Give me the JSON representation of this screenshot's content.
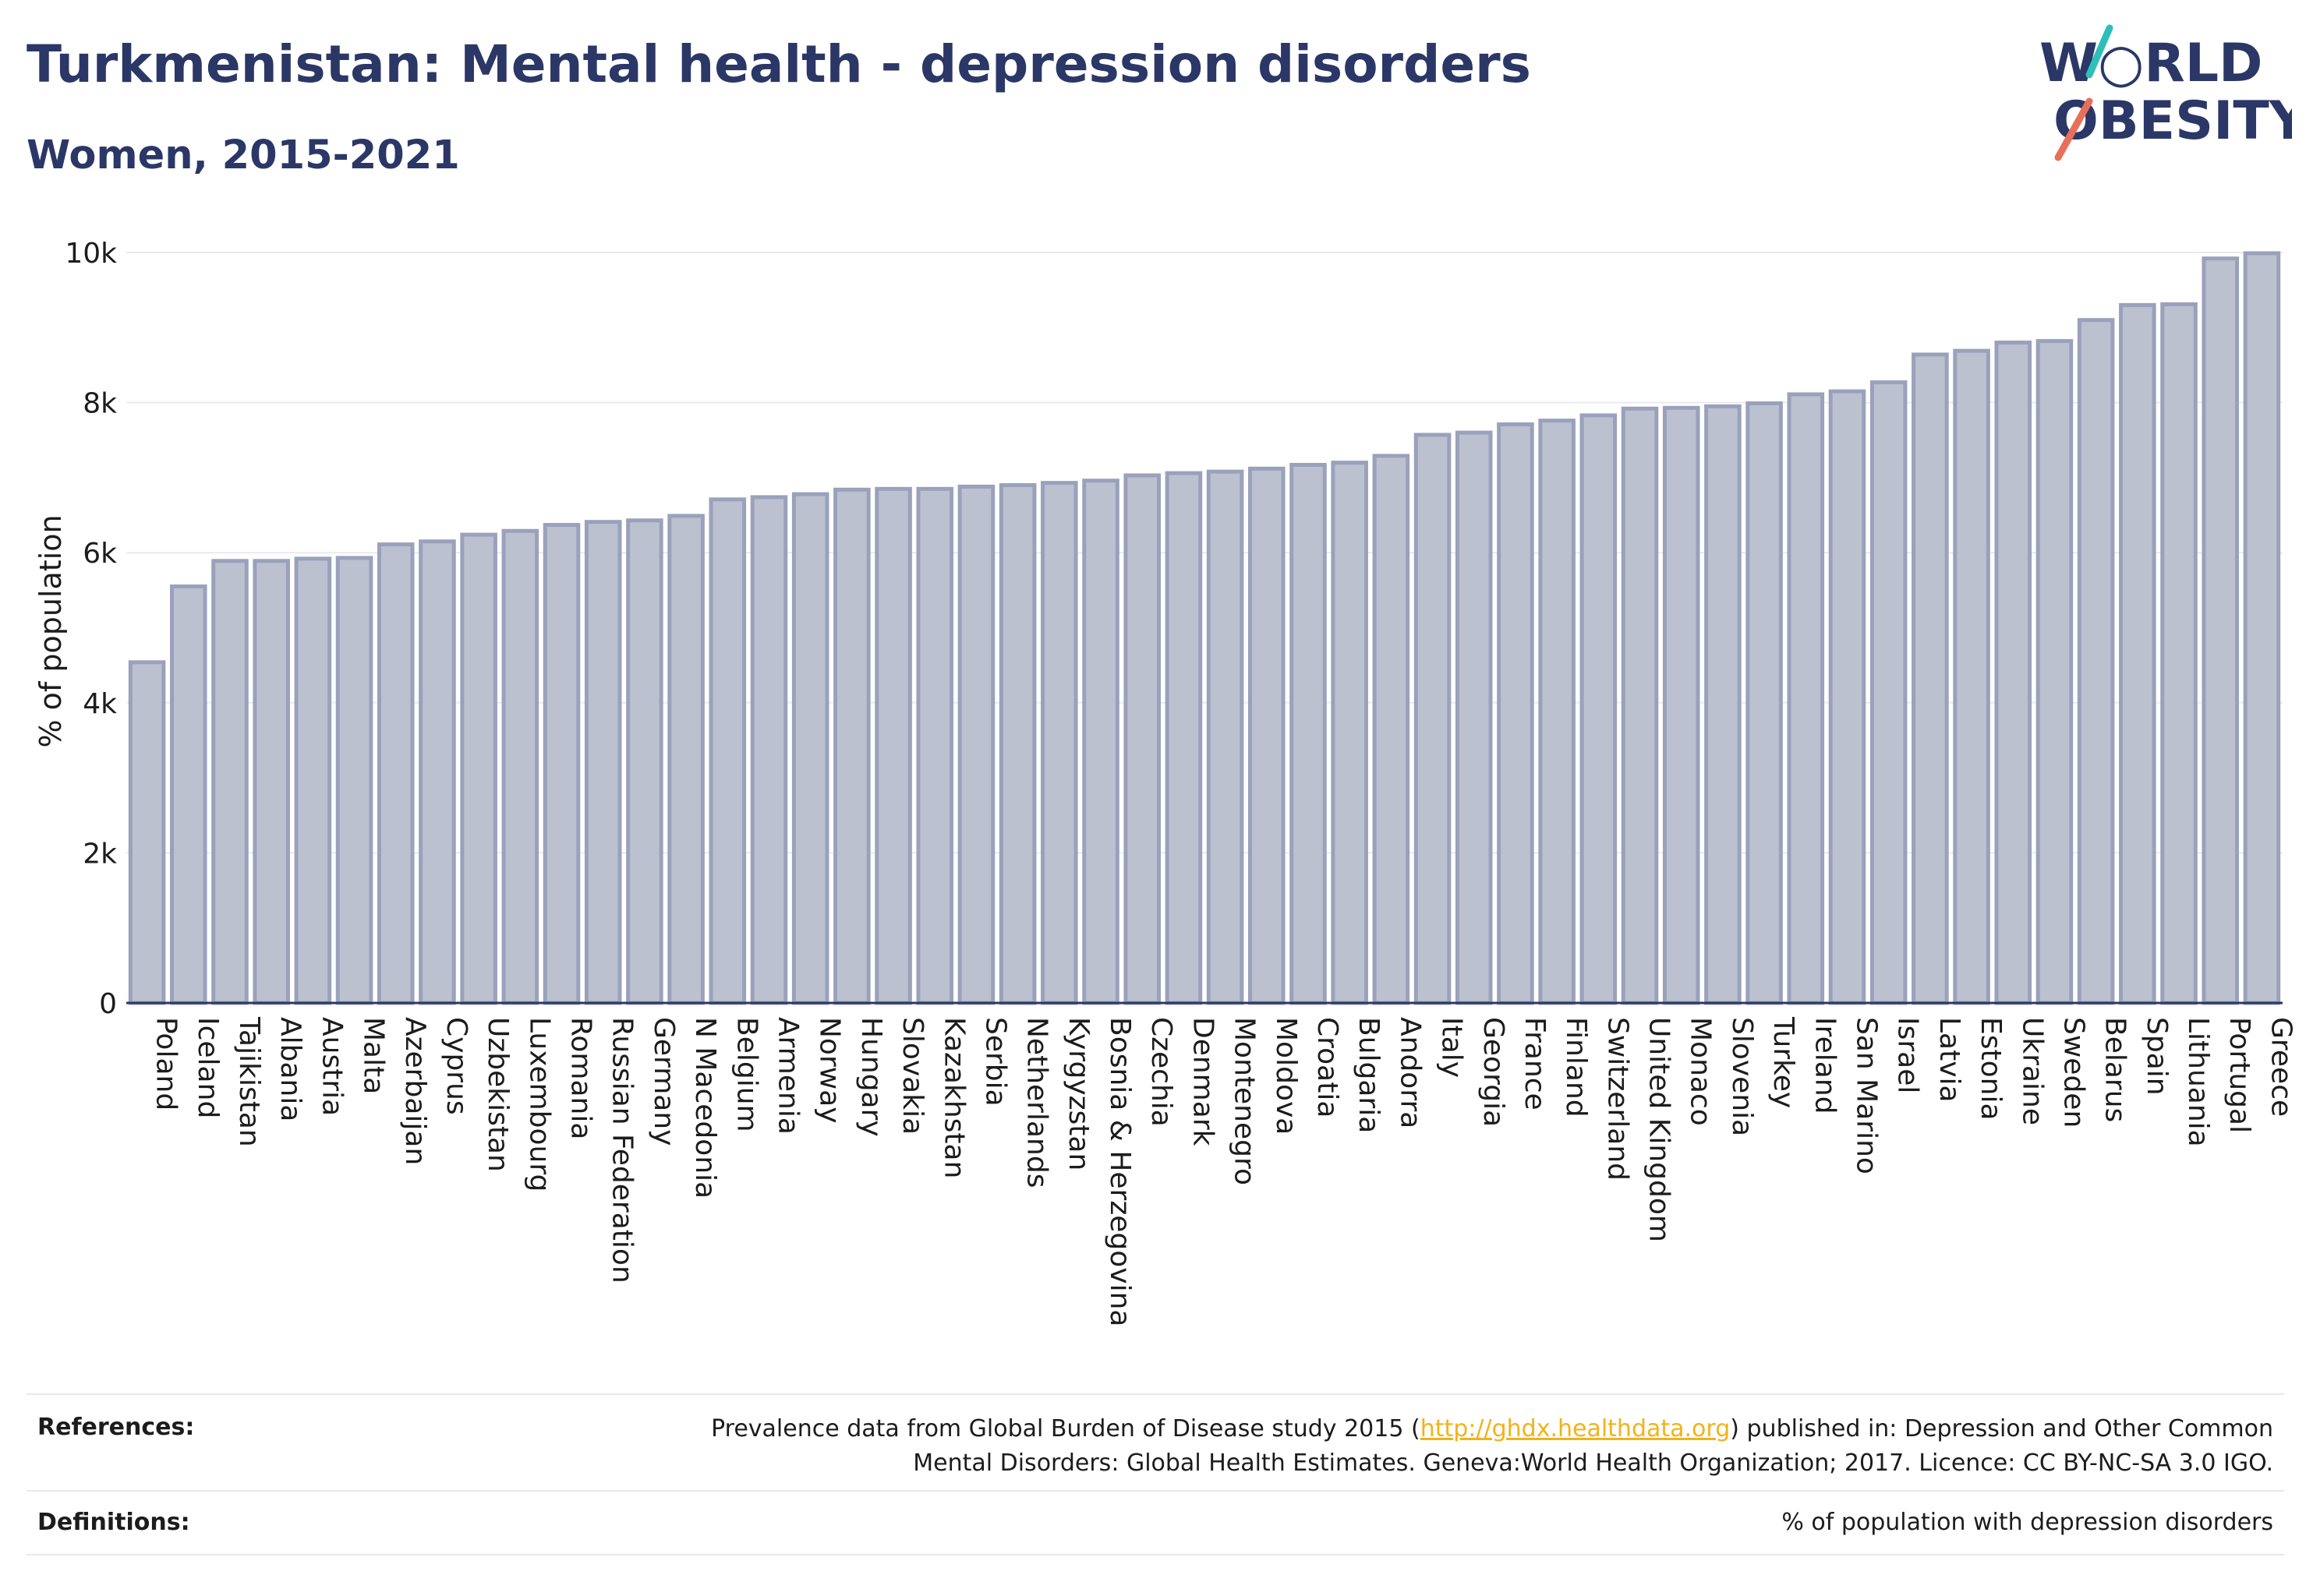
{
  "header": {
    "title": "Turkmenistan: Mental health - depression disorders",
    "subtitle": "Women, 2015-2021"
  },
  "logo": {
    "line1": "W",
    "line1b": "RLD",
    "line2a": "O",
    "line2b": "BESITY"
  },
  "colors": {
    "bar_fill": "#bcc1d0",
    "bar_stroke": "#9aa1bb",
    "title": "#2b3766",
    "logo_teal": "#2ebfb8",
    "logo_red": "#e8705a",
    "link": "#f0b31a"
  },
  "chart_data": {
    "type": "bar",
    "ylabel": "% of population",
    "xlabel": "",
    "ylim": [
      0,
      10000
    ],
    "yticks": [
      0,
      2000,
      4000,
      6000,
      8000,
      10000
    ],
    "ytick_labels": [
      "0",
      "2k",
      "4k",
      "6k",
      "8k",
      "10k"
    ],
    "grid": true,
    "categories": [
      "Poland",
      "Iceland",
      "Tajikistan",
      "Albania",
      "Austria",
      "Malta",
      "Azerbaijan",
      "Cyprus",
      "Uzbekistan",
      "Luxembourg",
      "Romania",
      "Russian Federation",
      "Germany",
      "N Macedonia",
      "Belgium",
      "Armenia",
      "Norway",
      "Hungary",
      "Slovakia",
      "Kazakhstan",
      "Serbia",
      "Netherlands",
      "Kyrgyzstan",
      "Bosnia & Herzegovina",
      "Czechia",
      "Denmark",
      "Montenegro",
      "Moldova",
      "Croatia",
      "Bulgaria",
      "Andorra",
      "Italy",
      "Georgia",
      "France",
      "Finland",
      "Switzerland",
      "United Kingdom",
      "Monaco",
      "Slovenia",
      "Turkey",
      "Ireland",
      "San Marino",
      "Israel",
      "Latvia",
      "Estonia",
      "Ukraine",
      "Sweden",
      "Belarus",
      "Spain",
      "Lithuania",
      "Portugal",
      "Greece"
    ],
    "values": [
      4540,
      5550,
      5890,
      5890,
      5920,
      5930,
      6110,
      6150,
      6240,
      6290,
      6370,
      6410,
      6430,
      6490,
      6710,
      6740,
      6780,
      6840,
      6850,
      6850,
      6880,
      6900,
      6930,
      6960,
      7030,
      7060,
      7080,
      7120,
      7170,
      7200,
      7290,
      7570,
      7600,
      7710,
      7760,
      7830,
      7920,
      7930,
      7950,
      7990,
      8110,
      8150,
      8270,
      8640,
      8690,
      8800,
      8820,
      9100,
      9300,
      9310,
      9920,
      9990
    ]
  },
  "footer": {
    "references_label": "References:",
    "references_pre": "Prevalence data from Global Burden of Disease study 2015 (",
    "references_link": "http://ghdx.healthdata.org",
    "references_post": ") published in: Depression and Other Common",
    "references_line2": "Mental Disorders: Global Health Estimates. Geneva:World Health Organization; 2017. Licence: CC BY-NC-SA 3.0 IGO.",
    "definitions_label": "Definitions:",
    "definitions_text": "% of population with depression disorders"
  }
}
